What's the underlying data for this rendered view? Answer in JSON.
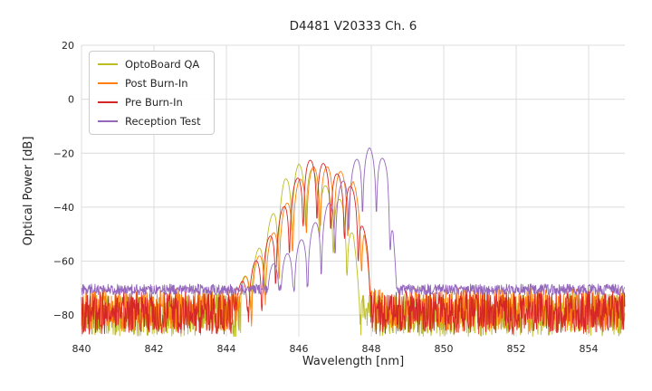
{
  "chart_data": {
    "type": "line",
    "title": "D4481 V20333 Ch. 6",
    "xlabel": "Wavelength [nm]",
    "ylabel": "Optical Power [dB]",
    "xlim": [
      840,
      855
    ],
    "ylim": [
      -88,
      20
    ],
    "xticks": [
      840,
      842,
      844,
      846,
      848,
      850,
      852,
      854
    ],
    "yticks": [
      20,
      0,
      -20,
      -40,
      -60,
      -80
    ],
    "grid": true,
    "legend_position": "upper-left",
    "mode_spacing_nm": 0.38,
    "mode_valley_depth_db": 22,
    "series": [
      {
        "name": "OptoBoard QA",
        "color": "#bcbd22",
        "noise_floor_db": -80,
        "noise_amp_db": 8,
        "mode_phase_nm": 846.0,
        "envelope": [
          [
            844.4,
            -68
          ],
          [
            844.8,
            -58
          ],
          [
            845.2,
            -45
          ],
          [
            845.6,
            -30
          ],
          [
            846.0,
            -24
          ],
          [
            846.4,
            -26
          ],
          [
            846.8,
            -33
          ],
          [
            847.2,
            -38
          ],
          [
            847.5,
            -50
          ],
          [
            847.7,
            -70
          ],
          [
            847.9,
            -85
          ]
        ]
      },
      {
        "name": "Post Burn-In",
        "color": "#ff7f0e",
        "noise_floor_db": -78,
        "noise_amp_db": 8,
        "mode_phase_nm": 846.4,
        "envelope": [
          [
            844.3,
            -70
          ],
          [
            844.8,
            -60
          ],
          [
            845.2,
            -52
          ],
          [
            845.6,
            -40
          ],
          [
            846.0,
            -30
          ],
          [
            846.4,
            -25
          ],
          [
            846.8,
            -25
          ],
          [
            847.2,
            -27
          ],
          [
            847.5,
            -30
          ],
          [
            847.8,
            -45
          ],
          [
            848.0,
            -75
          ]
        ]
      },
      {
        "name": "Pre Burn-In",
        "color": "#d62728",
        "noise_floor_db": -79,
        "noise_amp_db": 8,
        "mode_phase_nm": 846.31,
        "envelope": [
          [
            844.2,
            -72
          ],
          [
            844.6,
            -64
          ],
          [
            845.0,
            -56
          ],
          [
            845.4,
            -45
          ],
          [
            845.8,
            -33
          ],
          [
            846.2,
            -23
          ],
          [
            846.5,
            -22
          ],
          [
            846.9,
            -26
          ],
          [
            847.3,
            -30
          ],
          [
            847.6,
            -35
          ],
          [
            847.9,
            -55
          ],
          [
            848.05,
            -80
          ]
        ]
      },
      {
        "name": "Reception Test",
        "color": "#9467bd",
        "noise_floor_db": -70.5,
        "noise_amp_db": 2,
        "mode_phase_nm": 847.95,
        "envelope": [
          [
            845.0,
            -64
          ],
          [
            845.4,
            -60
          ],
          [
            845.8,
            -56
          ],
          [
            846.2,
            -50
          ],
          [
            846.6,
            -43
          ],
          [
            847.0,
            -35
          ],
          [
            847.4,
            -26
          ],
          [
            847.7,
            -20
          ],
          [
            847.95,
            -18
          ],
          [
            848.2,
            -20
          ],
          [
            848.45,
            -24
          ],
          [
            848.6,
            -45
          ],
          [
            848.7,
            -70
          ]
        ]
      }
    ]
  }
}
